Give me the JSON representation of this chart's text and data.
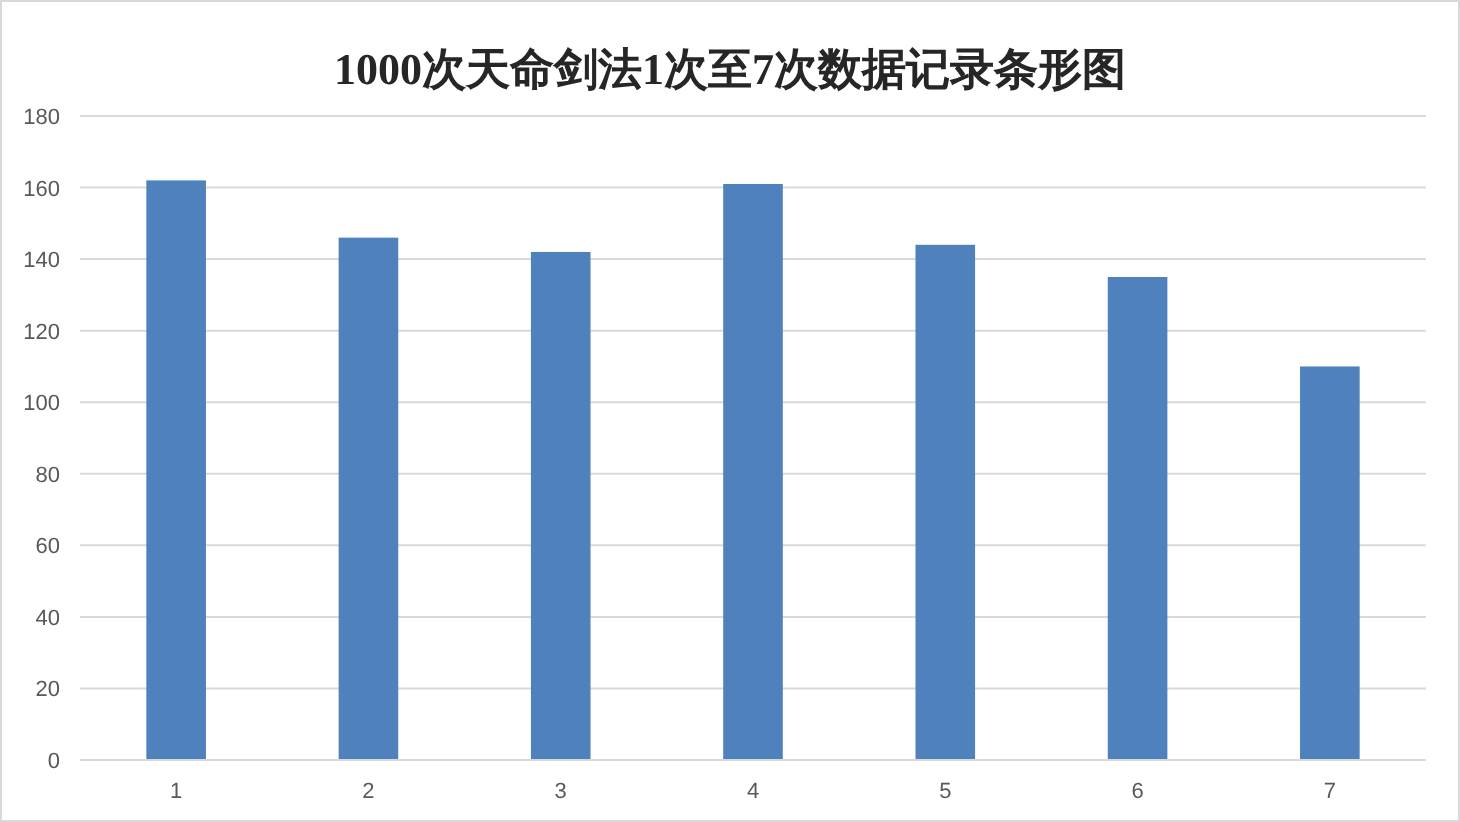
{
  "chart_data": {
    "type": "bar",
    "title": "1000次天命剑法1次至7次数据记录条形图",
    "categories": [
      "1",
      "2",
      "3",
      "4",
      "5",
      "6",
      "7"
    ],
    "values": [
      162,
      146,
      142,
      161,
      144,
      135,
      110
    ],
    "color": "#4f81bd",
    "ylim": [
      0,
      180
    ],
    "yticks": [
      0,
      20,
      40,
      60,
      80,
      100,
      120,
      140,
      160,
      180
    ],
    "grid": "y"
  }
}
